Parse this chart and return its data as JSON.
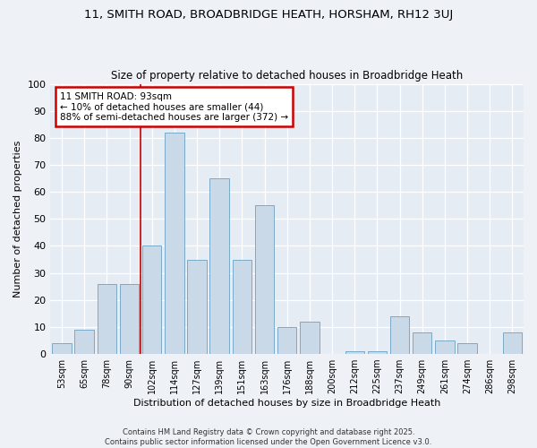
{
  "title": "11, SMITH ROAD, BROADBRIDGE HEATH, HORSHAM, RH12 3UJ",
  "subtitle": "Size of property relative to detached houses in Broadbridge Heath",
  "xlabel": "Distribution of detached houses by size in Broadbridge Heath",
  "ylabel": "Number of detached properties",
  "footer_line1": "Contains HM Land Registry data © Crown copyright and database right 2025.",
  "footer_line2": "Contains public sector information licensed under the Open Government Licence v3.0.",
  "categories": [
    "53sqm",
    "65sqm",
    "78sqm",
    "90sqm",
    "102sqm",
    "114sqm",
    "127sqm",
    "139sqm",
    "151sqm",
    "163sqm",
    "176sqm",
    "188sqm",
    "200sqm",
    "212sqm",
    "225sqm",
    "237sqm",
    "249sqm",
    "261sqm",
    "274sqm",
    "286sqm",
    "298sqm"
  ],
  "values": [
    4,
    9,
    26,
    26,
    40,
    82,
    35,
    65,
    35,
    55,
    10,
    12,
    0,
    1,
    1,
    14,
    8,
    5,
    4,
    0,
    8
  ],
  "bar_color": "#cad9e8",
  "bar_edge_color": "#7aaac8",
  "annotation_title": "11 SMITH ROAD: 93sqm",
  "annotation_line1": "← 10% of detached houses are smaller (44)",
  "annotation_line2": "88% of semi-detached houses are larger (372) →",
  "annotation_box_color": "#ffffff",
  "annotation_box_edge_color": "#cc0000",
  "property_line_x": 3.5,
  "ylim": [
    0,
    100
  ],
  "yticks": [
    0,
    10,
    20,
    30,
    40,
    50,
    60,
    70,
    80,
    90,
    100
  ],
  "background_color": "#eef2f7",
  "plot_background": "#e6ecf4"
}
